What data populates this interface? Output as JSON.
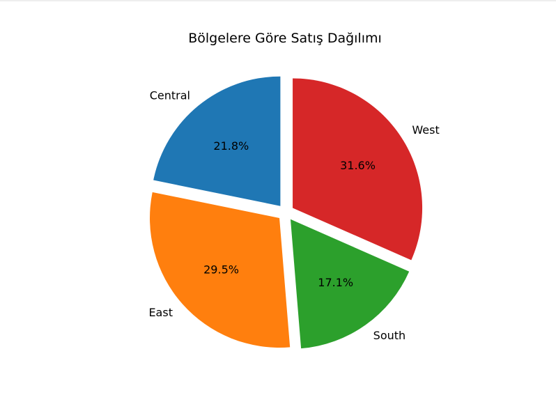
{
  "chart_data": {
    "type": "pie",
    "title": "Bölgelere Göre Satış Dağılımı",
    "slices": [
      {
        "label": "Central",
        "percent": 21.8,
        "percent_label": "21.8%",
        "color": "#1f77b4"
      },
      {
        "label": "East",
        "percent": 29.5,
        "percent_label": "29.5%",
        "color": "#ff7f0e"
      },
      {
        "label": "South",
        "percent": 17.1,
        "percent_label": "17.1%",
        "color": "#2ca02c"
      },
      {
        "label": "West",
        "percent": 31.6,
        "percent_label": "31.6%",
        "color": "#d62728"
      }
    ],
    "start_angle": 90,
    "direction": "counterclockwise",
    "exploded": true,
    "legend": "none"
  }
}
